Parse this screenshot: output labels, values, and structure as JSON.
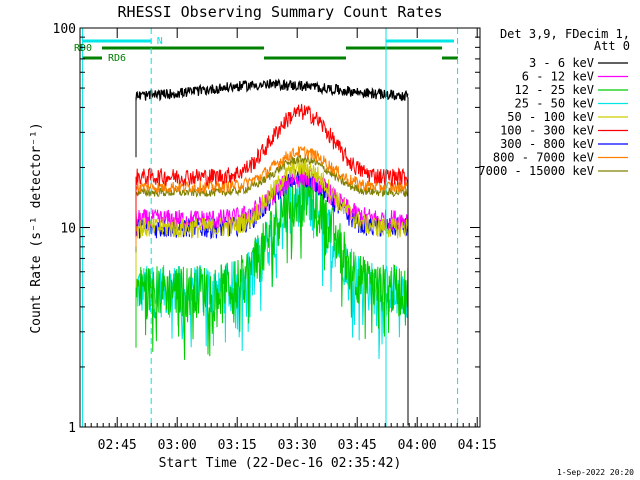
{
  "chart_data": {
    "type": "line",
    "title": "RHESSI Observing Summary Count Rates",
    "xlabel": "Start Time (22-Dec-16 02:35:42)",
    "ylabel": "Count Rate (s⁻¹ detector⁻¹)",
    "yscale": "log",
    "ylim": [
      1,
      100
    ],
    "y_tick_labels": [
      "1",
      "10",
      "100"
    ],
    "y_tick_values": [
      1,
      10,
      100
    ],
    "xlim": [
      0,
      100
    ],
    "x_tick_labels": [
      "02:45",
      "03:00",
      "03:15",
      "03:30",
      "03:45",
      "04:00",
      "04:15"
    ],
    "x_tick_values": [
      9.3,
      24.3,
      39.3,
      54.3,
      69.3,
      84.3,
      99.3
    ],
    "x_unit": "minutes since 02:35:42",
    "data_start": 14,
    "data_end": 82,
    "legend_header": [
      "Det 3,9, FDecim 1,",
      "Att 0"
    ],
    "series": [
      {
        "name": "3 - 6 keV",
        "color": "#000000",
        "base": 45,
        "peak": 52,
        "noise": 0.08
      },
      {
        "name": "6 - 12 keV",
        "color": "#ff00ff",
        "base": 11,
        "peak": 18,
        "noise": 0.12
      },
      {
        "name": "12 - 25 keV",
        "color": "#00cc00",
        "base": 5,
        "peak": 15,
        "noise": 0.3
      },
      {
        "name": "25 - 50 keV",
        "color": "#00e5e5",
        "base": 5,
        "peak": 14,
        "noise": 0.3
      },
      {
        "name": "50 - 100 keV",
        "color": "#cccc00",
        "base": 10,
        "peak": 20,
        "noise": 0.12
      },
      {
        "name": "100 - 300 keV",
        "color": "#ff0000",
        "base": 18,
        "peak": 38,
        "noise": 0.1
      },
      {
        "name": "300 - 800 keV",
        "color": "#0000ff",
        "base": 10,
        "peak": 18,
        "noise": 0.12
      },
      {
        "name": "800 - 7000 keV",
        "color": "#ff8000",
        "base": 16,
        "peak": 24,
        "noise": 0.07
      },
      {
        "name": "7000 - 15000 keV",
        "color": "#808000",
        "base": 15,
        "peak": 22,
        "noise": 0.05
      }
    ],
    "annotations": {
      "N_label": "N",
      "RD0_label": "RD0",
      "RD6_label": "RD6"
    }
  },
  "footer": {
    "timestamp": "1-Sep-2022 20:20"
  }
}
